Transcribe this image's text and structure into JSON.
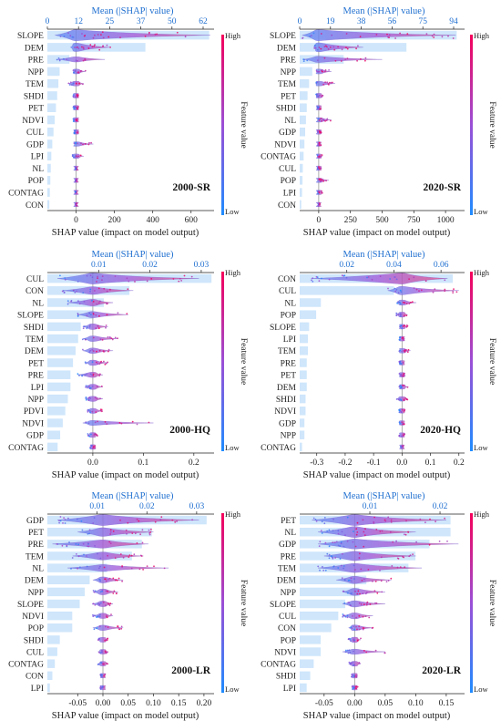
{
  "palette": {
    "bar": "#cfe6fb",
    "low": "#1f8cff",
    "mid": "#9b4fd6",
    "high": "#f5005a",
    "axis": "#222222",
    "top_axis_text": "#1f6fd0",
    "zero_line": "#9a9a9a"
  },
  "colorbar": {
    "high_label": "High",
    "low_label": "Low",
    "title": "Feature value"
  },
  "chart_data": [
    {
      "type": "bar",
      "subtype": "shap-summary-beeswarm",
      "panel_label": "2000-SR",
      "top_axis_title": "Mean (|SHAP| value)",
      "top_ticks": [
        "0",
        "12",
        "25",
        "37",
        "50",
        "62"
      ],
      "top_range": [
        0,
        68
      ],
      "xlabel": "SHAP value (impact on model output)",
      "bottom_ticks": [
        {
          "v": 0,
          "t": "0"
        },
        {
          "v": 200,
          "t": "200"
        },
        {
          "v": 400,
          "t": "400"
        },
        {
          "v": 600,
          "t": "600"
        }
      ],
      "xlim": [
        -150,
        720
      ],
      "features": [
        "SLOPE",
        "DEM",
        "PRE",
        "NPP",
        "TEM",
        "SHDI",
        "PET",
        "NDVI",
        "CUL",
        "GDP",
        "LPI",
        "NL",
        "POP",
        "CONTAG",
        "CON"
      ],
      "mean_abs_shap": [
        66,
        40,
        9,
        5,
        4.5,
        4,
        3.5,
        3,
        2.5,
        2,
        1.6,
        1.4,
        1.2,
        1,
        0.8
      ],
      "shap_min": [
        -110,
        -30,
        -100,
        -15,
        -40,
        -15,
        -15,
        -15,
        -10,
        -10,
        -20,
        -5,
        -5,
        -5,
        -5
      ],
      "shap_max": [
        700,
        180,
        150,
        50,
        40,
        15,
        15,
        15,
        15,
        90,
        40,
        5,
        5,
        5,
        5
      ]
    },
    {
      "type": "bar",
      "subtype": "shap-summary-beeswarm",
      "panel_label": "2020-SR",
      "top_axis_title": "Mean (|SHAP| value)",
      "top_ticks": [
        "0",
        "19",
        "38",
        "56",
        "75",
        "94"
      ],
      "top_range": [
        0,
        105
      ],
      "xlabel": "SHAP value (impact on model output)",
      "bottom_ticks": [
        {
          "v": 0,
          "t": "0"
        },
        {
          "v": 250,
          "t": "250"
        },
        {
          "v": 500,
          "t": "500"
        },
        {
          "v": 750,
          "t": "750"
        },
        {
          "v": 1000,
          "t": "1000"
        }
      ],
      "xlim": [
        -150,
        1150
      ],
      "features": [
        "SLOPE",
        "DEM",
        "PRE",
        "NPP",
        "TEM",
        "PET",
        "SHDI",
        "NL",
        "GDP",
        "NDVI",
        "CONTAG",
        "CUL",
        "POP",
        "LPI",
        "CON"
      ],
      "mean_abs_shap": [
        100,
        68,
        28,
        8,
        6,
        5,
        4.5,
        4,
        3.5,
        3,
        2.5,
        2,
        1.8,
        1.5,
        1
      ],
      "shap_min": [
        -130,
        -40,
        -120,
        -20,
        -20,
        -20,
        -15,
        -10,
        -10,
        -10,
        -10,
        -10,
        -10,
        -10,
        -5
      ],
      "shap_max": [
        1080,
        350,
        500,
        100,
        130,
        40,
        25,
        100,
        20,
        20,
        30,
        20,
        80,
        30,
        10
      ]
    },
    {
      "type": "bar",
      "subtype": "shap-summary-beeswarm",
      "panel_label": "2000-HQ",
      "top_axis_title": "Mean (|SHAP| value)",
      "top_ticks": [
        "0.01",
        "0.02",
        "0.03"
      ],
      "top_ticks_at": [
        0.01,
        0.02,
        0.03
      ],
      "top_range": [
        0,
        0.0325
      ],
      "xlabel": "SHAP value (impact on model output)",
      "bottom_ticks": [
        {
          "v": 0,
          "t": "0.0"
        },
        {
          "v": 0.1,
          "t": "0.1"
        },
        {
          "v": 0.2,
          "t": "0.2"
        }
      ],
      "xlim": [
        -0.09,
        0.24
      ],
      "features": [
        "CUL",
        "CON",
        "NL",
        "SLOPE",
        "SHDI",
        "TEM",
        "DEM",
        "PET",
        "PRE",
        "LPI",
        "NPP",
        "PDVI",
        "NDVI",
        "GDP",
        "CONTAG"
      ],
      "mean_abs_shap": [
        0.032,
        0.016,
        0.011,
        0.009,
        0.0065,
        0.006,
        0.0055,
        0.005,
        0.0045,
        0.0045,
        0.004,
        0.0035,
        0.003,
        0.0025,
        0.002
      ],
      "shap_min": [
        -0.07,
        -0.06,
        -0.05,
        -0.03,
        -0.02,
        -0.02,
        -0.02,
        -0.015,
        -0.03,
        -0.015,
        -0.015,
        -0.01,
        -0.02,
        -0.01,
        -0.005
      ],
      "shap_max": [
        0.21,
        0.08,
        0.04,
        0.07,
        0.03,
        0.05,
        0.04,
        0.03,
        0.02,
        0.02,
        0.02,
        0.02,
        0.12,
        0.01,
        0.005
      ]
    },
    {
      "type": "bar",
      "subtype": "shap-summary-beeswarm",
      "panel_label": "2020-HQ",
      "top_axis_title": "Mean (|SHAP| value)",
      "top_ticks": [
        "0.02",
        "0.04",
        "0.06"
      ],
      "top_ticks_at": [
        0.02,
        0.04,
        0.06
      ],
      "top_range": [
        0,
        0.07
      ],
      "xlabel": "SHAP value (impact on model output)",
      "bottom_ticks": [
        {
          "v": -0.3,
          "t": "-0.3"
        },
        {
          "v": -0.2,
          "t": "-0.2"
        },
        {
          "v": -0.1,
          "t": "-0.1"
        },
        {
          "v": 0,
          "t": "0.0"
        },
        {
          "v": 0.1,
          "t": "0.1"
        },
        {
          "v": 0.2,
          "t": "0.2"
        }
      ],
      "xlim": [
        -0.36,
        0.22
      ],
      "features": [
        "CON",
        "CUL",
        "NL",
        "POP",
        "SLOPE",
        "LPI",
        "TEM",
        "PRE",
        "PET",
        "DEM",
        "SHDI",
        "NDVI",
        "GDP",
        "NPP",
        "CONTAG"
      ],
      "mean_abs_shap": [
        0.065,
        0.04,
        0.009,
        0.007,
        0.004,
        0.0035,
        0.0035,
        0.003,
        0.003,
        0.003,
        0.0025,
        0.0025,
        0.002,
        0.002,
        0.001
      ],
      "shap_min": [
        -0.32,
        -0.05,
        -0.02,
        -0.02,
        -0.01,
        -0.01,
        -0.01,
        -0.01,
        -0.01,
        -0.01,
        -0.02,
        -0.01,
        -0.01,
        -0.01,
        -0.005
      ],
      "shap_max": [
        0.16,
        0.2,
        0.05,
        0.02,
        0.02,
        0.01,
        0.03,
        0.01,
        0.01,
        0.02,
        0.02,
        0.01,
        0.01,
        0.01,
        0.005
      ]
    },
    {
      "type": "bar",
      "subtype": "shap-summary-beeswarm",
      "panel_label": "2000-LR",
      "top_axis_title": "Mean (|SHAP| value)",
      "top_ticks": [
        "0.01",
        "0.02",
        "0.03"
      ],
      "top_ticks_at": [
        0.01,
        0.02,
        0.03
      ],
      "top_range": [
        0,
        0.0335
      ],
      "xlabel": "SHAP value (impact on model output)",
      "bottom_ticks": [
        {
          "v": -0.05,
          "t": "-0.05"
        },
        {
          "v": 0,
          "t": "0.00"
        },
        {
          "v": 0.05,
          "t": "0.05"
        },
        {
          "v": 0.1,
          "t": "0.10"
        },
        {
          "v": 0.15,
          "t": "0.15"
        },
        {
          "v": 0.2,
          "t": "0.20"
        }
      ],
      "xlim": [
        -0.11,
        0.22
      ],
      "features": [
        "GDP",
        "PET",
        "PRE",
        "TEM",
        "NL",
        "DEM",
        "NPP",
        "SLOPE",
        "NDVI",
        "POP",
        "SHDI",
        "CUL",
        "CONTAG",
        "CON",
        "LPI"
      ],
      "mean_abs_shap": [
        0.032,
        0.021,
        0.019,
        0.017,
        0.012,
        0.0085,
        0.0075,
        0.0065,
        0.005,
        0.005,
        0.0025,
        0.002,
        0.0015,
        0.001,
        0.0005
      ],
      "shap_min": [
        -0.09,
        -0.05,
        -0.1,
        -0.06,
        -0.07,
        -0.02,
        -0.02,
        -0.02,
        -0.02,
        -0.02,
        -0.01,
        -0.01,
        -0.01,
        -0.005,
        -0.005
      ],
      "shap_max": [
        0.19,
        0.1,
        0.09,
        0.08,
        0.13,
        0.04,
        0.03,
        0.02,
        0.02,
        0.04,
        0.01,
        0.01,
        0.01,
        0.005,
        0.005
      ]
    },
    {
      "type": "bar",
      "subtype": "shap-summary-beeswarm",
      "panel_label": "2020-LR",
      "top_axis_title": "Mean (|SHAP| value)",
      "top_ticks": [
        "0.01",
        "0.02"
      ],
      "top_ticks_at": [
        0.01,
        0.02
      ],
      "top_range": [
        0,
        0.0235
      ],
      "xlabel": "SHAP value (impact on model output)",
      "bottom_ticks": [
        {
          "v": -0.05,
          "t": "-0.05"
        },
        {
          "v": 0,
          "t": "0.00"
        },
        {
          "v": 0.05,
          "t": "0.05"
        },
        {
          "v": 0.1,
          "t": "0.10"
        },
        {
          "v": 0.15,
          "t": "0.15"
        }
      ],
      "xlim": [
        -0.09,
        0.18
      ],
      "features": [
        "PET",
        "NL",
        "GDP",
        "PRE",
        "TEM",
        "DEM",
        "NPP",
        "SLOPE",
        "CUL",
        "CON",
        "POP",
        "NDVI",
        "CONTAG",
        "SHDI",
        "LPI"
      ],
      "mean_abs_shap": [
        0.0215,
        0.0215,
        0.0185,
        0.0165,
        0.0155,
        0.0095,
        0.0085,
        0.0065,
        0.0055,
        0.0045,
        0.003,
        0.003,
        0.002,
        0.0015,
        0.001
      ],
      "shap_min": [
        -0.07,
        -0.06,
        -0.06,
        -0.05,
        -0.06,
        -0.03,
        -0.02,
        -0.02,
        -0.02,
        -0.01,
        -0.01,
        -0.02,
        -0.01,
        -0.005,
        -0.005
      ],
      "shap_max": [
        0.15,
        0.1,
        0.17,
        0.1,
        0.11,
        0.06,
        0.05,
        0.05,
        0.03,
        0.03,
        0.01,
        0.05,
        0.01,
        0.005,
        0.005
      ]
    }
  ]
}
